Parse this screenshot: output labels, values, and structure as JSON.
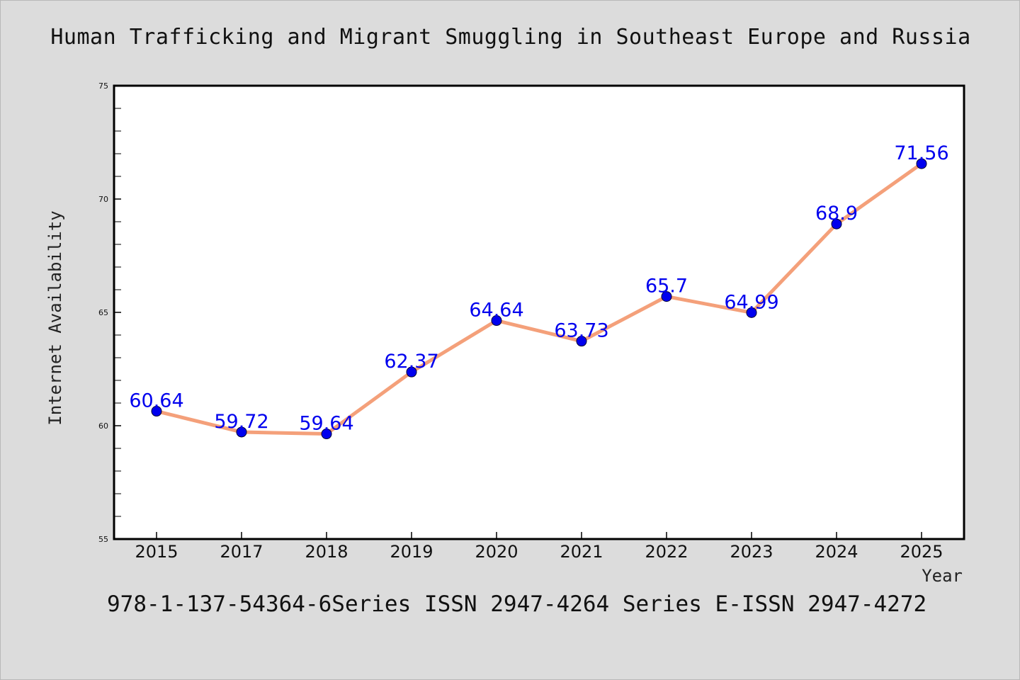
{
  "chart_data": {
    "type": "line",
    "title": "Human Trafficking and Migrant Smuggling in Southeast Europe and Russia",
    "xlabel": "Year",
    "ylabel": "Internet Availability",
    "categories": [
      "2015",
      "2017",
      "2018",
      "2019",
      "2020",
      "2021",
      "2022",
      "2023",
      "2024",
      "2025"
    ],
    "series": [
      {
        "values": [
          60.64,
          59.72,
          59.64,
          62.37,
          64.64,
          63.73,
          65.7,
          64.99,
          68.9,
          71.56
        ]
      }
    ],
    "data_labels": [
      "60.64",
      "59.72",
      "59.64",
      "62.37",
      "64.64",
      "63.73",
      "65.7",
      "64.99",
      "68.9",
      "71.56"
    ],
    "ylim": [
      55,
      75
    ],
    "yticks": [
      "55",
      "60",
      "65",
      "70",
      "75"
    ],
    "grid": false,
    "legend": "none",
    "colors": {
      "line": "#f4a07a",
      "marker": "#0000ee",
      "data_label": "#0000ee",
      "background": "#dcdcdc",
      "plot_area": "#ffffff"
    }
  },
  "footer": {
    "text": "978-1-137-54364-6Series ISSN 2947-4264 Series E-ISSN 2947-4272"
  }
}
